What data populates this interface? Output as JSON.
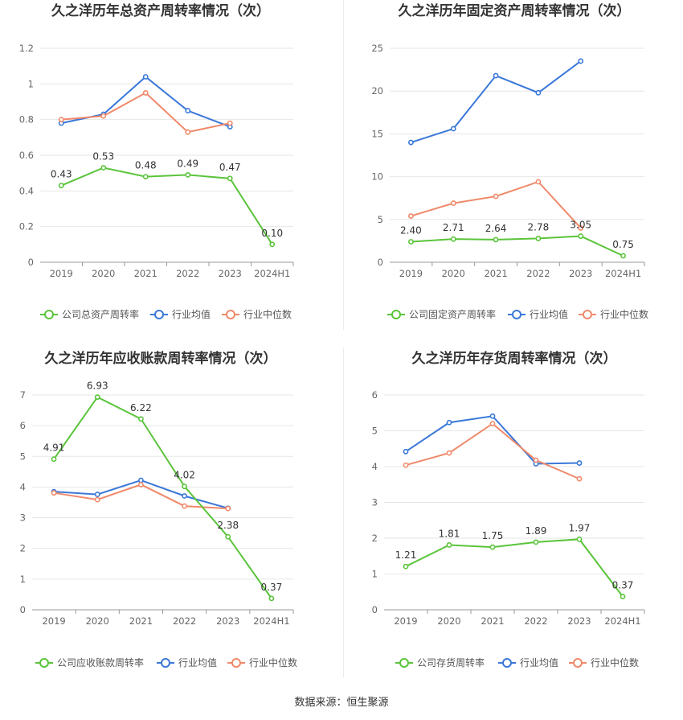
{
  "source_text": "数据来源：恒生聚源",
  "colors": {
    "company": "#5ac43a",
    "avg": "#3a78d8",
    "median": "#f0896a",
    "grid": "#e6e6e6",
    "axis_text": "#666666",
    "title": "#333333"
  },
  "chart_data": [
    {
      "type": "line",
      "title": "久之洋历年总资产周转率情况（次）",
      "categories": [
        "2019",
        "2020",
        "2021",
        "2022",
        "2023",
        "2024H1"
      ],
      "ylim": [
        0,
        1.2
      ],
      "yticks": [
        "0",
        "0.2",
        "0.4",
        "0.6",
        "0.8",
        "1",
        "1.2"
      ],
      "series": [
        {
          "name": "公司总资产周转率",
          "role": "company",
          "values": [
            0.43,
            0.53,
            0.48,
            0.49,
            0.47,
            0.1
          ],
          "labels": [
            "0.43",
            "0.53",
            "0.48",
            "0.49",
            "0.47",
            "0.10"
          ]
        },
        {
          "name": "行业均值",
          "role": "avg",
          "values": [
            0.78,
            0.83,
            1.04,
            0.85,
            0.76,
            null
          ]
        },
        {
          "name": "行业中位数",
          "role": "median",
          "values": [
            0.8,
            0.82,
            0.95,
            0.73,
            0.78,
            null
          ]
        }
      ]
    },
    {
      "type": "line",
      "title": "久之洋历年固定资产周转率情况（次）",
      "categories": [
        "2019",
        "2020",
        "2021",
        "2022",
        "2023",
        "2024H1"
      ],
      "ylim": [
        0,
        25
      ],
      "yticks": [
        "0",
        "5",
        "10",
        "15",
        "20",
        "25"
      ],
      "series": [
        {
          "name": "公司固定资产周转率",
          "role": "company",
          "values": [
            2.4,
            2.71,
            2.64,
            2.78,
            3.05,
            0.75
          ],
          "labels": [
            "2.40",
            "2.71",
            "2.64",
            "2.78",
            "3.05",
            "0.75"
          ]
        },
        {
          "name": "行业均值",
          "role": "avg",
          "values": [
            14.0,
            15.6,
            21.8,
            19.8,
            23.5,
            null
          ]
        },
        {
          "name": "行业中位数",
          "role": "median",
          "values": [
            5.4,
            6.9,
            7.7,
            9.4,
            4.0,
            null
          ]
        }
      ]
    },
    {
      "type": "line",
      "title": "久之洋历年应收账款周转率情况（次）",
      "categories": [
        "2019",
        "2020",
        "2021",
        "2022",
        "2023",
        "2024H1"
      ],
      "ylim": [
        0,
        7
      ],
      "yticks": [
        "0",
        "1",
        "2",
        "3",
        "4",
        "5",
        "6",
        "7"
      ],
      "series": [
        {
          "name": "公司应收账款周转率",
          "role": "company",
          "values": [
            4.91,
            6.93,
            6.22,
            4.02,
            2.38,
            0.37
          ],
          "labels": [
            "4.91",
            "6.93",
            "6.22",
            "4.02",
            "2.38",
            "0.37"
          ]
        },
        {
          "name": "行业均值",
          "role": "avg",
          "values": [
            3.85,
            3.76,
            4.22,
            3.71,
            3.31,
            null
          ]
        },
        {
          "name": "行业中位数",
          "role": "median",
          "values": [
            3.81,
            3.59,
            4.08,
            3.38,
            3.3,
            null
          ]
        }
      ]
    },
    {
      "type": "line",
      "title": "久之洋历年存货周转率情况（次）",
      "categories": [
        "2019",
        "2020",
        "2021",
        "2022",
        "2023",
        "2024H1"
      ],
      "ylim": [
        0,
        6
      ],
      "yticks": [
        "0",
        "1",
        "2",
        "3",
        "4",
        "5",
        "6"
      ],
      "series": [
        {
          "name": "公司存货周转率",
          "role": "company",
          "values": [
            1.21,
            1.81,
            1.75,
            1.89,
            1.97,
            0.37
          ],
          "labels": [
            "1.21",
            "1.81",
            "1.75",
            "1.89",
            "1.97",
            "0.37"
          ]
        },
        {
          "name": "行业均值",
          "role": "avg",
          "values": [
            4.42,
            5.23,
            5.41,
            4.08,
            4.1,
            null
          ]
        },
        {
          "name": "行业中位数",
          "role": "median",
          "values": [
            4.04,
            4.38,
            5.2,
            4.18,
            3.66,
            null
          ]
        }
      ]
    }
  ]
}
